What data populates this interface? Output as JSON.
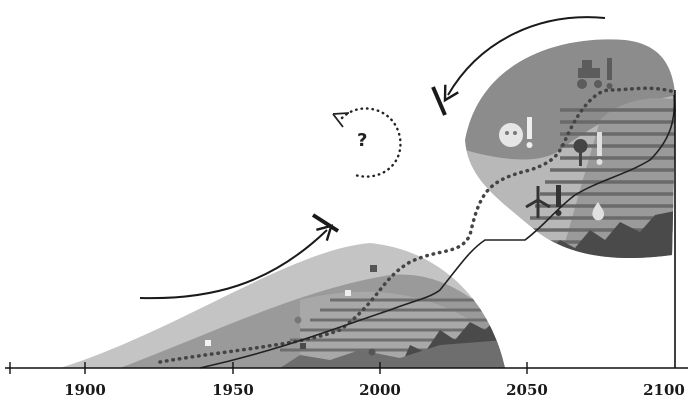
{
  "axis": {
    "x_ticks": [
      "1900",
      "1950",
      "2000",
      "2050",
      "2100"
    ]
  },
  "question_mark": "?",
  "icons": {
    "left_blob": [
      "square",
      "square",
      "square",
      "dot",
      "dot"
    ],
    "right_blob": [
      "tractor",
      "exclamation",
      "face",
      "exclamation",
      "tree",
      "exclamation",
      "wind-turbine",
      "exclamation",
      "water-drop"
    ]
  },
  "colors": {
    "ink": "#1a1a1a",
    "blob_light": "#c4c4c4",
    "blob_mid": "#9a9a9a",
    "blob_dark": "#6e6e6e",
    "blob_darkest": "#3f3f3f"
  }
}
